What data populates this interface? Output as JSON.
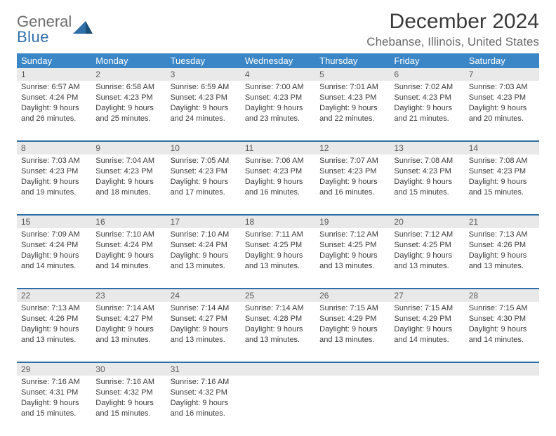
{
  "brand": {
    "general": "General",
    "blue": "Blue"
  },
  "title": "December 2024",
  "location": "Chebanse, Illinois, United States",
  "colors": {
    "header_bg": "#3b86c6",
    "header_text": "#ffffff",
    "rule": "#2f6fa8",
    "daynum_bg": "#e9e9e9",
    "text": "#3a3a3a",
    "logo_gray": "#6d6e70",
    "logo_blue": "#2f6fa8"
  },
  "typography": {
    "title_fontsize": 30,
    "location_fontsize": 17,
    "weekday_fontsize": 13,
    "body_fontsize": 11
  },
  "weekdays": [
    "Sunday",
    "Monday",
    "Tuesday",
    "Wednesday",
    "Thursday",
    "Friday",
    "Saturday"
  ],
  "weeks": [
    [
      {
        "n": "1",
        "sr": "Sunrise: 6:57 AM",
        "ss": "Sunset: 4:24 PM",
        "d1": "Daylight: 9 hours",
        "d2": "and 26 minutes."
      },
      {
        "n": "2",
        "sr": "Sunrise: 6:58 AM",
        "ss": "Sunset: 4:23 PM",
        "d1": "Daylight: 9 hours",
        "d2": "and 25 minutes."
      },
      {
        "n": "3",
        "sr": "Sunrise: 6:59 AM",
        "ss": "Sunset: 4:23 PM",
        "d1": "Daylight: 9 hours",
        "d2": "and 24 minutes."
      },
      {
        "n": "4",
        "sr": "Sunrise: 7:00 AM",
        "ss": "Sunset: 4:23 PM",
        "d1": "Daylight: 9 hours",
        "d2": "and 23 minutes."
      },
      {
        "n": "5",
        "sr": "Sunrise: 7:01 AM",
        "ss": "Sunset: 4:23 PM",
        "d1": "Daylight: 9 hours",
        "d2": "and 22 minutes."
      },
      {
        "n": "6",
        "sr": "Sunrise: 7:02 AM",
        "ss": "Sunset: 4:23 PM",
        "d1": "Daylight: 9 hours",
        "d2": "and 21 minutes."
      },
      {
        "n": "7",
        "sr": "Sunrise: 7:03 AM",
        "ss": "Sunset: 4:23 PM",
        "d1": "Daylight: 9 hours",
        "d2": "and 20 minutes."
      }
    ],
    [
      {
        "n": "8",
        "sr": "Sunrise: 7:03 AM",
        "ss": "Sunset: 4:23 PM",
        "d1": "Daylight: 9 hours",
        "d2": "and 19 minutes."
      },
      {
        "n": "9",
        "sr": "Sunrise: 7:04 AM",
        "ss": "Sunset: 4:23 PM",
        "d1": "Daylight: 9 hours",
        "d2": "and 18 minutes."
      },
      {
        "n": "10",
        "sr": "Sunrise: 7:05 AM",
        "ss": "Sunset: 4:23 PM",
        "d1": "Daylight: 9 hours",
        "d2": "and 17 minutes."
      },
      {
        "n": "11",
        "sr": "Sunrise: 7:06 AM",
        "ss": "Sunset: 4:23 PM",
        "d1": "Daylight: 9 hours",
        "d2": "and 16 minutes."
      },
      {
        "n": "12",
        "sr": "Sunrise: 7:07 AM",
        "ss": "Sunset: 4:23 PM",
        "d1": "Daylight: 9 hours",
        "d2": "and 16 minutes."
      },
      {
        "n": "13",
        "sr": "Sunrise: 7:08 AM",
        "ss": "Sunset: 4:23 PM",
        "d1": "Daylight: 9 hours",
        "d2": "and 15 minutes."
      },
      {
        "n": "14",
        "sr": "Sunrise: 7:08 AM",
        "ss": "Sunset: 4:23 PM",
        "d1": "Daylight: 9 hours",
        "d2": "and 15 minutes."
      }
    ],
    [
      {
        "n": "15",
        "sr": "Sunrise: 7:09 AM",
        "ss": "Sunset: 4:24 PM",
        "d1": "Daylight: 9 hours",
        "d2": "and 14 minutes."
      },
      {
        "n": "16",
        "sr": "Sunrise: 7:10 AM",
        "ss": "Sunset: 4:24 PM",
        "d1": "Daylight: 9 hours",
        "d2": "and 14 minutes."
      },
      {
        "n": "17",
        "sr": "Sunrise: 7:10 AM",
        "ss": "Sunset: 4:24 PM",
        "d1": "Daylight: 9 hours",
        "d2": "and 13 minutes."
      },
      {
        "n": "18",
        "sr": "Sunrise: 7:11 AM",
        "ss": "Sunset: 4:25 PM",
        "d1": "Daylight: 9 hours",
        "d2": "and 13 minutes."
      },
      {
        "n": "19",
        "sr": "Sunrise: 7:12 AM",
        "ss": "Sunset: 4:25 PM",
        "d1": "Daylight: 9 hours",
        "d2": "and 13 minutes."
      },
      {
        "n": "20",
        "sr": "Sunrise: 7:12 AM",
        "ss": "Sunset: 4:25 PM",
        "d1": "Daylight: 9 hours",
        "d2": "and 13 minutes."
      },
      {
        "n": "21",
        "sr": "Sunrise: 7:13 AM",
        "ss": "Sunset: 4:26 PM",
        "d1": "Daylight: 9 hours",
        "d2": "and 13 minutes."
      }
    ],
    [
      {
        "n": "22",
        "sr": "Sunrise: 7:13 AM",
        "ss": "Sunset: 4:26 PM",
        "d1": "Daylight: 9 hours",
        "d2": "and 13 minutes."
      },
      {
        "n": "23",
        "sr": "Sunrise: 7:14 AM",
        "ss": "Sunset: 4:27 PM",
        "d1": "Daylight: 9 hours",
        "d2": "and 13 minutes."
      },
      {
        "n": "24",
        "sr": "Sunrise: 7:14 AM",
        "ss": "Sunset: 4:27 PM",
        "d1": "Daylight: 9 hours",
        "d2": "and 13 minutes."
      },
      {
        "n": "25",
        "sr": "Sunrise: 7:14 AM",
        "ss": "Sunset: 4:28 PM",
        "d1": "Daylight: 9 hours",
        "d2": "and 13 minutes."
      },
      {
        "n": "26",
        "sr": "Sunrise: 7:15 AM",
        "ss": "Sunset: 4:29 PM",
        "d1": "Daylight: 9 hours",
        "d2": "and 13 minutes."
      },
      {
        "n": "27",
        "sr": "Sunrise: 7:15 AM",
        "ss": "Sunset: 4:29 PM",
        "d1": "Daylight: 9 hours",
        "d2": "and 14 minutes."
      },
      {
        "n": "28",
        "sr": "Sunrise: 7:15 AM",
        "ss": "Sunset: 4:30 PM",
        "d1": "Daylight: 9 hours",
        "d2": "and 14 minutes."
      }
    ],
    [
      {
        "n": "29",
        "sr": "Sunrise: 7:16 AM",
        "ss": "Sunset: 4:31 PM",
        "d1": "Daylight: 9 hours",
        "d2": "and 15 minutes."
      },
      {
        "n": "30",
        "sr": "Sunrise: 7:16 AM",
        "ss": "Sunset: 4:32 PM",
        "d1": "Daylight: 9 hours",
        "d2": "and 15 minutes."
      },
      {
        "n": "31",
        "sr": "Sunrise: 7:16 AM",
        "ss": "Sunset: 4:32 PM",
        "d1": "Daylight: 9 hours",
        "d2": "and 16 minutes."
      },
      null,
      null,
      null,
      null
    ]
  ]
}
